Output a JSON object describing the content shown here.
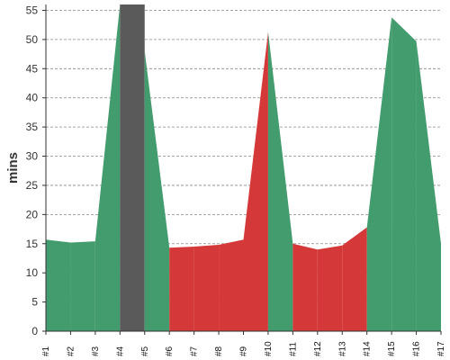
{
  "chart_data": {
    "type": "area",
    "ylabel": "mins",
    "ylim": [
      0,
      56
    ],
    "yticks": [
      0,
      5,
      10,
      15,
      20,
      25,
      30,
      35,
      40,
      45,
      50,
      55
    ],
    "categories": [
      "#1",
      "#2",
      "#3",
      "#4",
      "#5",
      "#6",
      "#7",
      "#8",
      "#9",
      "#10",
      "#11",
      "#12",
      "#13",
      "#14",
      "#15",
      "#16",
      "#17"
    ],
    "values": [
      15.7,
      15.2,
      15.4,
      56,
      48,
      14.3,
      14.5,
      14.8,
      15.7,
      51.3,
      15,
      14,
      14.7,
      17.8,
      53.8,
      49.7,
      15
    ],
    "segment_status": [
      "pass",
      "pass",
      "pass",
      "none",
      "pass",
      "fail",
      "fail",
      "fail",
      "fail",
      "pass",
      "fail",
      "fail",
      "fail",
      "pass",
      "pass",
      "pass",
      "fail"
    ],
    "grid": true,
    "colors": {
      "pass": "#439c6d",
      "fail": "#d43838",
      "none": "#5a5a5a",
      "grid": "#888888",
      "axis": "#333333"
    }
  }
}
